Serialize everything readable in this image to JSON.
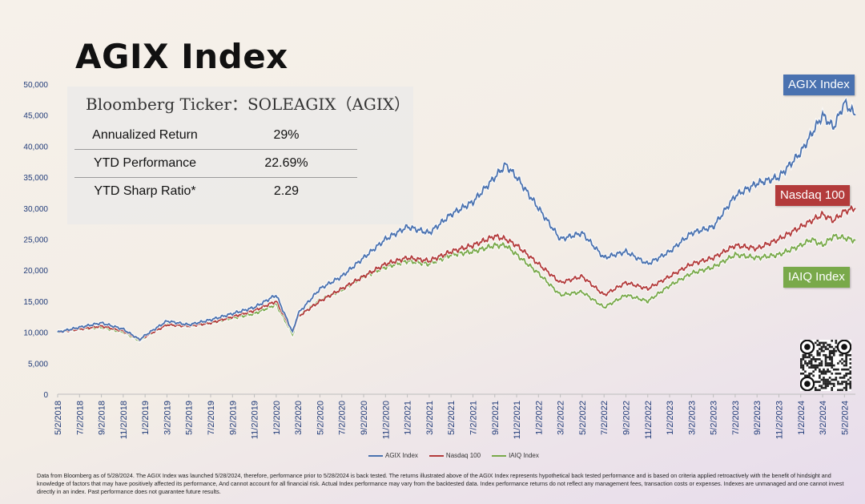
{
  "page_title": "AGIX Index",
  "info_panel": {
    "ticker": "Bloomberg Ticker：SOLEAGIX（AGIX）",
    "stats": [
      {
        "label": "Annualized Return",
        "value": "29%"
      },
      {
        "label": "YTD Performance",
        "value": "22.69%"
      },
      {
        "label": "YTD Sharp Ratio*",
        "value": "2.29"
      }
    ]
  },
  "series_tags": {
    "agix": "AGIX Index",
    "nasdaq": "Nasdaq 100",
    "iaiq": "IAIQ Index"
  },
  "legend": {
    "agix": "AGIX Index",
    "nasdaq": "Nasdaq 100",
    "iaiq": "IAIQ Index"
  },
  "disclaimer": "Data from Bloomberg as of 5/28/2024. The AGIX Index was launched 5/28/2024, therefore, performance prior to 5/28/2024 is back tested. The returns illustrated above of the AGIX Index represents hypothetical back tested performance and is based on criteria applied retroactively with the benefit of hindsight and knowledge of factors that may have positively affected its performance,  And cannot account for all financial risk. Actual Index performance may vary from the backtested data. Index performance returns do not reflect any management fees, transaction costs or expenses. Indexes are unmanaged and one cannot invest directly in an index. Past performance does not guarantee future results.",
  "colors": {
    "agix": "#4a72b0",
    "nasdaq": "#b33b3b",
    "iaiq": "#79a94a",
    "axis_text": "#1f3a78"
  },
  "chart_data": {
    "type": "line",
    "x_tick_labels": [
      "5/2/2018",
      "7/2/2018",
      "9/2/2018",
      "11/2/2018",
      "1/2/2019",
      "3/2/2019",
      "5/2/2019",
      "7/2/2019",
      "9/2/2019",
      "11/2/2019",
      "1/2/2020",
      "3/2/2020",
      "5/2/2020",
      "7/2/2020",
      "9/2/2020",
      "11/2/2020",
      "1/2/2021",
      "3/2/2021",
      "5/2/2021",
      "7/2/2021",
      "9/2/2021",
      "11/2/2021",
      "1/2/2022",
      "3/2/2022",
      "5/2/2022",
      "7/2/2022",
      "9/2/2022",
      "11/2/2022",
      "1/2/2023",
      "3/2/2023",
      "5/2/2023",
      "7/2/2023",
      "9/2/2023",
      "11/2/2023",
      "1/2/2024",
      "3/2/2024",
      "5/2/2024"
    ],
    "y_tick_labels": [
      "0",
      "5,000",
      "10,000",
      "15,000",
      "20,000",
      "25,000",
      "30,000",
      "35,000",
      "40,000",
      "45,000",
      "50,000"
    ],
    "ylim": [
      0,
      50000
    ],
    "xlim_months_from_start": [
      0,
      73
    ],
    "series": [
      {
        "name": "AGIX Index",
        "x": [
          0,
          2,
          4,
          6,
          7.5,
          8,
          10,
          12,
          14,
          16,
          18,
          20,
          21.5,
          22,
          24,
          26,
          28,
          30,
          32,
          34,
          36,
          38,
          40,
          41,
          42,
          44,
          46,
          48,
          50,
          52,
          54,
          56,
          58,
          60,
          62,
          64,
          66,
          68,
          69,
          70,
          71,
          72,
          73
        ],
        "y": [
          10000,
          10800,
          11500,
          10500,
          8800,
          9500,
          11800,
          11200,
          12000,
          13000,
          14000,
          16000,
          10000,
          13000,
          17000,
          19000,
          22000,
          25000,
          27000,
          26000,
          29000,
          31000,
          35000,
          37000,
          35000,
          30000,
          25000,
          26000,
          22000,
          23000,
          21000,
          23000,
          26000,
          27000,
          32000,
          34000,
          35000,
          39000,
          42000,
          45000,
          43000,
          47000,
          45000
        ]
      },
      {
        "name": "Nasdaq 100",
        "x": [
          0,
          2,
          4,
          6,
          7.5,
          8,
          10,
          12,
          14,
          16,
          18,
          20,
          21.5,
          22,
          24,
          26,
          28,
          30,
          32,
          34,
          36,
          38,
          40,
          41,
          42,
          44,
          46,
          48,
          50,
          52,
          54,
          56,
          58,
          60,
          62,
          64,
          66,
          68,
          69,
          70,
          71,
          72,
          73
        ],
        "y": [
          10000,
          10500,
          11000,
          10200,
          8800,
          9300,
          11200,
          11000,
          11500,
          12500,
          13500,
          15000,
          10000,
          12500,
          15000,
          17000,
          19000,
          21000,
          22000,
          21500,
          23000,
          24000,
          25500,
          25000,
          24000,
          21000,
          18000,
          19000,
          16000,
          18000,
          17000,
          19000,
          21000,
          22000,
          24000,
          23500,
          25000,
          27000,
          28000,
          29000,
          28000,
          29500,
          30000
        ]
      },
      {
        "name": "IAIQ Index",
        "x": [
          0,
          2,
          4,
          6,
          7.5,
          8,
          10,
          12,
          14,
          16,
          18,
          20,
          21.5,
          22,
          24,
          26,
          28,
          30,
          32,
          34,
          36,
          38,
          40,
          41,
          42,
          44,
          46,
          48,
          50,
          52,
          54,
          56,
          58,
          60,
          62,
          64,
          66,
          68,
          69,
          70,
          71,
          72,
          73
        ],
        "y": [
          10000,
          10500,
          10800,
          10000,
          8600,
          9200,
          11300,
          11000,
          11500,
          12300,
          13000,
          14500,
          9600,
          12500,
          15200,
          16800,
          19000,
          20500,
          21500,
          21000,
          22500,
          23000,
          24000,
          24000,
          22500,
          19500,
          16000,
          16500,
          14000,
          16000,
          15000,
          17500,
          19500,
          20500,
          22500,
          22000,
          22500,
          24000,
          25000,
          24000,
          25500,
          25200,
          24800
        ]
      }
    ]
  }
}
